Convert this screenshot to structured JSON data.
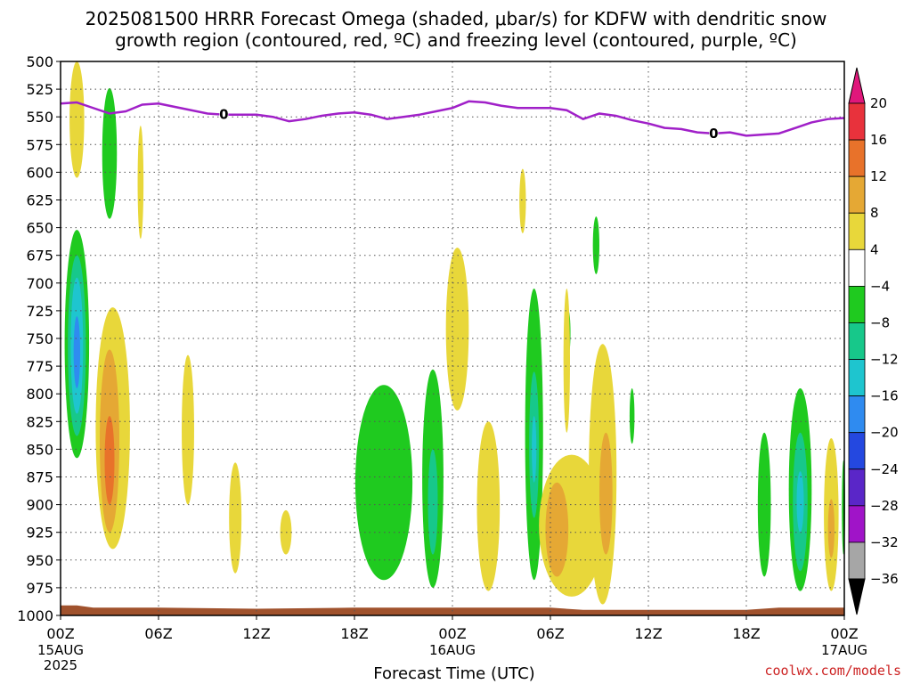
{
  "chart_data": {
    "type": "heatmap",
    "title_line1": "2025081500 HRRR Forecast Omega (shaded, μbar/s) for KDFW with dendritic snow",
    "title_line2": "growth region (contoured, red, ºC) and freezing level (contoured, purple, ºC)",
    "xlabel": "Forecast Time (UTC)",
    "credit": "coolwx.com/models",
    "x_unit": "hours since 2025-08-15 00Z",
    "xlim": [
      0,
      48
    ],
    "x_ticks": [
      {
        "hour": 0,
        "label": "00Z",
        "date": "15AUG",
        "year": "2025"
      },
      {
        "hour": 6,
        "label": "06Z"
      },
      {
        "hour": 12,
        "label": "12Z"
      },
      {
        "hour": 18,
        "label": "18Z"
      },
      {
        "hour": 24,
        "label": "00Z",
        "date": "16AUG"
      },
      {
        "hour": 30,
        "label": "06Z"
      },
      {
        "hour": 36,
        "label": "12Z"
      },
      {
        "hour": 42,
        "label": "18Z"
      },
      {
        "hour": 48,
        "label": "00Z",
        "date": "17AUG"
      }
    ],
    "ylim": [
      500,
      1000
    ],
    "y_ticks": [
      500,
      525,
      550,
      575,
      600,
      625,
      650,
      675,
      700,
      725,
      750,
      775,
      800,
      825,
      850,
      875,
      900,
      925,
      950,
      975,
      1000
    ],
    "grid": true,
    "colorbar": {
      "labels": [
        "20",
        "16",
        "12",
        "8",
        "4",
        "−4",
        "−8",
        "−12",
        "−16",
        "−20",
        "−24",
        "−28",
        "−32",
        "−36"
      ],
      "segments": [
        {
          "lo": 20,
          "hi": null,
          "color": "#e0177b"
        },
        {
          "lo": 16,
          "hi": 20,
          "color": "#e8323c"
        },
        {
          "lo": 12,
          "hi": 16,
          "color": "#e8722a"
        },
        {
          "lo": 8,
          "hi": 12,
          "color": "#e5a834"
        },
        {
          "lo": 4,
          "hi": 8,
          "color": "#e8d73a"
        },
        {
          "lo": -4,
          "hi": 4,
          "color": "#ffffff"
        },
        {
          "lo": -8,
          "hi": -4,
          "color": "#1fca1f"
        },
        {
          "lo": -12,
          "hi": -8,
          "color": "#17c88a"
        },
        {
          "lo": -16,
          "hi": -12,
          "color": "#1ec5cf"
        },
        {
          "lo": -20,
          "hi": -16,
          "color": "#2f8bf0"
        },
        {
          "lo": -24,
          "hi": -20,
          "color": "#2448e0"
        },
        {
          "lo": -28,
          "hi": -24,
          "color": "#5a26c8"
        },
        {
          "lo": -32,
          "hi": -28,
          "color": "#a014c8"
        },
        {
          "lo": -36,
          "hi": -32,
          "color": "#a6a6a6"
        },
        {
          "lo": null,
          "hi": -36,
          "color": "#000000"
        }
      ]
    },
    "freezing_level": {
      "color": "#a020c8",
      "label": "0",
      "label_points": [
        [
          10,
          548
        ],
        [
          40,
          565
        ]
      ],
      "points": [
        [
          0,
          538
        ],
        [
          1,
          537
        ],
        [
          2,
          542
        ],
        [
          3,
          547
        ],
        [
          4,
          545
        ],
        [
          5,
          539
        ],
        [
          6,
          538
        ],
        [
          7,
          541
        ],
        [
          8,
          544
        ],
        [
          9,
          547
        ],
        [
          10,
          548
        ],
        [
          11,
          548
        ],
        [
          12,
          548
        ],
        [
          13,
          550
        ],
        [
          14,
          554
        ],
        [
          15,
          552
        ],
        [
          16,
          549
        ],
        [
          17,
          547
        ],
        [
          18,
          546
        ],
        [
          19,
          548
        ],
        [
          20,
          552
        ],
        [
          21,
          550
        ],
        [
          22,
          548
        ],
        [
          23,
          545
        ],
        [
          24,
          542
        ],
        [
          25,
          536
        ],
        [
          26,
          537
        ],
        [
          27,
          540
        ],
        [
          28,
          542
        ],
        [
          29,
          542
        ],
        [
          30,
          542
        ],
        [
          31,
          544
        ],
        [
          32,
          552
        ],
        [
          33,
          547
        ],
        [
          34,
          549
        ],
        [
          35,
          553
        ],
        [
          36,
          556
        ],
        [
          37,
          560
        ],
        [
          38,
          561
        ],
        [
          39,
          564
        ],
        [
          40,
          565
        ],
        [
          41,
          564
        ],
        [
          42,
          567
        ],
        [
          43,
          566
        ],
        [
          44,
          565
        ],
        [
          45,
          560
        ],
        [
          46,
          555
        ],
        [
          47,
          552
        ],
        [
          48,
          551
        ]
      ]
    },
    "omega_regions": [
      {
        "band": "4 to 8",
        "color": "#e8d73a",
        "center_hour": 1.0,
        "half_width_hours": 0.45,
        "top_hpa": 498,
        "bottom_hpa": 605
      },
      {
        "band": "-4 to -8",
        "color": "#1fca1f",
        "center_hour": 3.0,
        "half_width_hours": 0.45,
        "top_hpa": 524,
        "bottom_hpa": 642
      },
      {
        "band": "4 to 8",
        "color": "#e8d73a",
        "center_hour": 4.9,
        "half_width_hours": 0.18,
        "top_hpa": 558,
        "bottom_hpa": 660
      },
      {
        "band": "-4 to -8",
        "color": "#1fca1f",
        "center_hour": 1.0,
        "half_width_hours": 0.75,
        "top_hpa": 652,
        "bottom_hpa": 858
      },
      {
        "band": "-8 to -12",
        "color": "#17c88a",
        "center_hour": 1.0,
        "half_width_hours": 0.55,
        "top_hpa": 675,
        "bottom_hpa": 838
      },
      {
        "band": "-12 to -16",
        "color": "#1ec5cf",
        "center_hour": 1.0,
        "half_width_hours": 0.38,
        "top_hpa": 695,
        "bottom_hpa": 818
      },
      {
        "band": "-16 to -20",
        "color": "#2f8bf0",
        "center_hour": 1.0,
        "half_width_hours": 0.2,
        "top_hpa": 730,
        "bottom_hpa": 795
      },
      {
        "band": "4 to 8",
        "color": "#e8d73a",
        "center_hour": 3.2,
        "half_width_hours": 1.05,
        "top_hpa": 722,
        "bottom_hpa": 940
      },
      {
        "band": "8 to 12",
        "color": "#e5a834",
        "center_hour": 3.0,
        "half_width_hours": 0.6,
        "top_hpa": 760,
        "bottom_hpa": 925
      },
      {
        "band": "12 to 16",
        "color": "#e8722a",
        "center_hour": 3.0,
        "half_width_hours": 0.3,
        "top_hpa": 820,
        "bottom_hpa": 900
      },
      {
        "band": "4 to 8",
        "color": "#e8d73a",
        "center_hour": 7.8,
        "half_width_hours": 0.38,
        "top_hpa": 765,
        "bottom_hpa": 900
      },
      {
        "band": "4 to 8",
        "color": "#e8d73a",
        "center_hour": 10.7,
        "half_width_hours": 0.38,
        "top_hpa": 862,
        "bottom_hpa": 962
      },
      {
        "band": "4 to 8",
        "color": "#e8d73a",
        "center_hour": 13.8,
        "half_width_hours": 0.35,
        "top_hpa": 905,
        "bottom_hpa": 945
      },
      {
        "band": "-4 to -8",
        "color": "#1fca1f",
        "center_hour": 19.8,
        "half_width_hours": 1.75,
        "top_hpa": 792,
        "bottom_hpa": 968
      },
      {
        "band": "-4 to -8",
        "color": "#1fca1f",
        "center_hour": 22.8,
        "half_width_hours": 0.65,
        "top_hpa": 778,
        "bottom_hpa": 975
      },
      {
        "band": "-8 to -12",
        "color": "#17c88a",
        "center_hour": 22.8,
        "half_width_hours": 0.3,
        "top_hpa": 850,
        "bottom_hpa": 945
      },
      {
        "band": "4 to 8",
        "color": "#e8d73a",
        "center_hour": 24.3,
        "half_width_hours": 0.7,
        "top_hpa": 668,
        "bottom_hpa": 815
      },
      {
        "band": "4 to 8",
        "color": "#e8d73a",
        "center_hour": 26.2,
        "half_width_hours": 0.7,
        "top_hpa": 825,
        "bottom_hpa": 978
      },
      {
        "band": "4 to 8",
        "color": "#e8d73a",
        "center_hour": 28.3,
        "half_width_hours": 0.2,
        "top_hpa": 597,
        "bottom_hpa": 655
      },
      {
        "band": "-4 to -8",
        "color": "#1fca1f",
        "center_hour": 29.0,
        "half_width_hours": 0.55,
        "top_hpa": 705,
        "bottom_hpa": 968
      },
      {
        "band": "-8 to -12",
        "color": "#17c88a",
        "center_hour": 29.0,
        "half_width_hours": 0.3,
        "top_hpa": 780,
        "bottom_hpa": 912
      },
      {
        "band": "-12 to -16",
        "color": "#1ec5cf",
        "center_hour": 29.0,
        "half_width_hours": 0.14,
        "top_hpa": 820,
        "bottom_hpa": 880
      },
      {
        "band": "-4 to -8",
        "color": "#1fca1f",
        "center_hour": 31.1,
        "half_width_hours": 0.13,
        "top_hpa": 725,
        "bottom_hpa": 765
      },
      {
        "band": "4 to 8",
        "color": "#e8d73a",
        "center_hour": 31.0,
        "half_width_hours": 0.2,
        "top_hpa": 705,
        "bottom_hpa": 835
      },
      {
        "band": "4 to 8",
        "color": "#e8d73a",
        "center_hour": 31.3,
        "half_width_hours": 2.0,
        "top_hpa": 855,
        "bottom_hpa": 983
      },
      {
        "band": "8 to 12",
        "color": "#e5a834",
        "center_hour": 30.4,
        "half_width_hours": 0.7,
        "top_hpa": 880,
        "bottom_hpa": 965
      },
      {
        "band": "4 to 8",
        "color": "#e8d73a",
        "center_hour": 33.2,
        "half_width_hours": 0.85,
        "top_hpa": 755,
        "bottom_hpa": 990
      },
      {
        "band": "8 to 12",
        "color": "#e5a834",
        "center_hour": 33.4,
        "half_width_hours": 0.4,
        "top_hpa": 835,
        "bottom_hpa": 945
      },
      {
        "band": "-4 to -8",
        "color": "#1fca1f",
        "center_hour": 32.8,
        "half_width_hours": 0.2,
        "top_hpa": 640,
        "bottom_hpa": 692
      },
      {
        "band": "-4 to -8",
        "color": "#1fca1f",
        "center_hour": 35.0,
        "half_width_hours": 0.15,
        "top_hpa": 795,
        "bottom_hpa": 845
      },
      {
        "band": "-4 to -8",
        "color": "#1fca1f",
        "center_hour": 43.1,
        "half_width_hours": 0.4,
        "top_hpa": 835,
        "bottom_hpa": 965
      },
      {
        "band": "-4 to -8",
        "color": "#1fca1f",
        "center_hour": 45.3,
        "half_width_hours": 0.7,
        "top_hpa": 795,
        "bottom_hpa": 978
      },
      {
        "band": "-8 to -12",
        "color": "#17c88a",
        "center_hour": 45.3,
        "half_width_hours": 0.45,
        "top_hpa": 835,
        "bottom_hpa": 960
      },
      {
        "band": "-12 to -16",
        "color": "#1ec5cf",
        "center_hour": 45.3,
        "half_width_hours": 0.22,
        "top_hpa": 870,
        "bottom_hpa": 925
      },
      {
        "band": "4 to 8",
        "color": "#e8d73a",
        "center_hour": 47.2,
        "half_width_hours": 0.45,
        "top_hpa": 840,
        "bottom_hpa": 978
      },
      {
        "band": "8 to 12",
        "color": "#e5a834",
        "center_hour": 47.2,
        "half_width_hours": 0.2,
        "top_hpa": 895,
        "bottom_hpa": 948
      },
      {
        "band": "-4 to -8",
        "color": "#1fca1f",
        "center_hour": 47.95,
        "half_width_hours": 0.1,
        "top_hpa": 860,
        "bottom_hpa": 945
      }
    ],
    "terrain": {
      "color": "#a0522d",
      "points": [
        [
          0,
          991
        ],
        [
          1,
          991
        ],
        [
          2,
          993
        ],
        [
          6,
          993
        ],
        [
          12,
          994
        ],
        [
          18,
          993
        ],
        [
          24,
          993
        ],
        [
          30,
          993
        ],
        [
          32,
          995
        ],
        [
          36,
          995
        ],
        [
          42,
          995
        ],
        [
          44,
          993
        ],
        [
          48,
          993
        ]
      ]
    }
  }
}
